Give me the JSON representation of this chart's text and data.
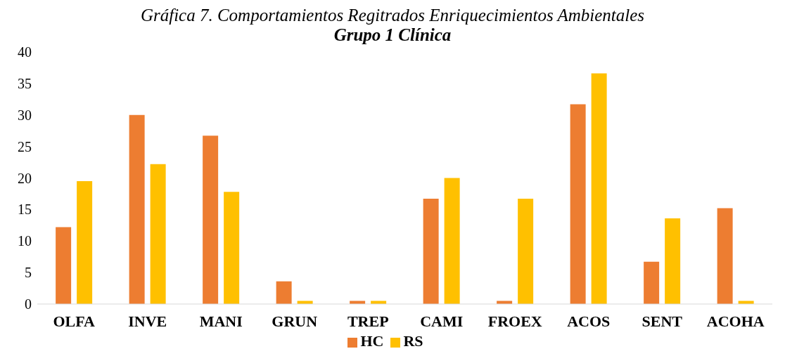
{
  "chart_data": {
    "type": "bar",
    "title": "Gráfica 7. Comportamientos Regitrados Enriquecimientos Ambientales",
    "subtitle": "Grupo 1 Clínica",
    "categories": [
      "OLFA",
      "INVE",
      "MANI",
      "GRUN",
      "TREP",
      "CAMI",
      "FROEX",
      "ACOS",
      "SENT",
      "ACOHA"
    ],
    "series": [
      {
        "name": "HC",
        "color": "#ed7d31",
        "values": [
          12.2,
          30.0,
          26.7,
          3.6,
          0.5,
          16.7,
          0.5,
          31.7,
          6.7,
          15.2
        ]
      },
      {
        "name": "RS",
        "color": "#ffc000",
        "values": [
          19.5,
          22.2,
          17.8,
          0.5,
          0.5,
          20.0,
          16.7,
          36.6,
          13.6,
          0.5
        ]
      }
    ],
    "ylim": [
      0,
      40
    ],
    "yticks": [
      0,
      5,
      10,
      15,
      20,
      25,
      30,
      35,
      40
    ],
    "grid": false,
    "legend": "bottom"
  }
}
